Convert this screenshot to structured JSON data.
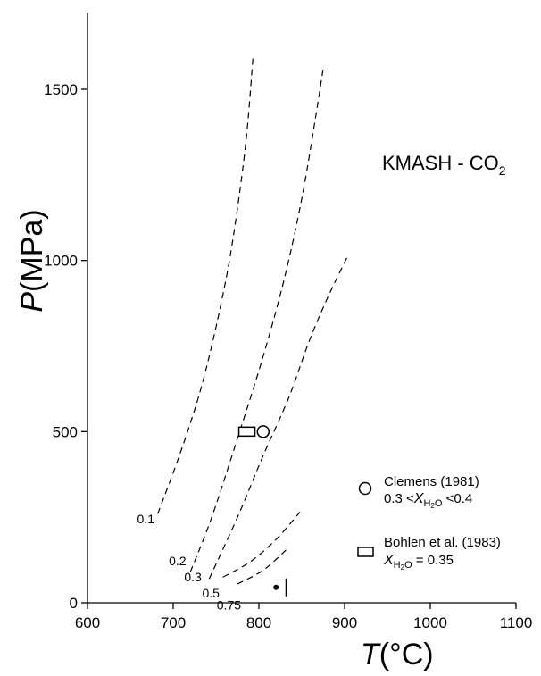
{
  "chart_data": {
    "type": "line",
    "title": "",
    "xlabel": {
      "symbol": "T",
      "unit": "(°C)"
    },
    "ylabel": {
      "symbol": "P",
      "unit": "(MPa)"
    },
    "xlim": [
      600,
      1100
    ],
    "ylim": [
      0,
      1700
    ],
    "xticks": [
      600,
      700,
      800,
      900,
      1000,
      1100
    ],
    "yticks": [
      0,
      500,
      1000,
      1500
    ],
    "system_label": {
      "main": "KMASH - CO",
      "sub": "2"
    },
    "series": [
      {
        "name": "0.1",
        "points": [
          [
            682,
            260
          ],
          [
            710,
            450
          ],
          [
            735,
            650
          ],
          [
            758,
            900
          ],
          [
            772,
            1100
          ],
          [
            785,
            1350
          ],
          [
            793,
            1590
          ]
        ]
      },
      {
        "name": "0.2",
        "points": [
          [
            720,
            90
          ],
          [
            745,
            250
          ],
          [
            775,
            480
          ],
          [
            805,
            720
          ],
          [
            830,
            950
          ],
          [
            850,
            1180
          ],
          [
            865,
            1400
          ],
          [
            875,
            1560
          ]
        ]
      },
      {
        "name": "0.3",
        "points": [
          [
            742,
            70
          ],
          [
            775,
            250
          ],
          [
            805,
            430
          ],
          [
            835,
            600
          ],
          [
            858,
            760
          ],
          [
            880,
            890
          ],
          [
            903,
            1010
          ]
        ]
      },
      {
        "name": "0.5",
        "points": [
          [
            758,
            75
          ],
          [
            790,
            120
          ],
          [
            820,
            185
          ],
          [
            848,
            265
          ]
        ]
      },
      {
        "name": "0.75",
        "points": [
          [
            775,
            55
          ],
          [
            805,
            95
          ],
          [
            832,
            155
          ]
        ]
      }
    ],
    "curve_labels": [
      {
        "text": "0.1",
        "x": 668,
        "y": 232
      },
      {
        "text": "0.2",
        "x": 705,
        "y": 110
      },
      {
        "text": "0.3",
        "x": 723,
        "y": 63
      },
      {
        "text": "0.5",
        "x": 744,
        "y": 16
      },
      {
        "text": "0.75",
        "x": 765,
        "y": -20
      }
    ],
    "markers": [
      {
        "kind": "circle",
        "x": 805,
        "y": 500
      },
      {
        "kind": "rectangle",
        "x": 786,
        "y": 500
      },
      {
        "kind": "dot",
        "x": 820,
        "y": 45
      },
      {
        "kind": "bar",
        "x": 832,
        "y": 45
      }
    ],
    "legend": {
      "position": "right",
      "entries": [
        {
          "marker": "circle",
          "line1": "Clemens (1981)",
          "line2_prefix": "0.3 <",
          "line2_var": "X",
          "line2_sub": "H",
          "line2_sub2": "2",
          "line2_sub3": "O",
          "line2_suffix": " <0.4"
        },
        {
          "marker": "rectangle",
          "line1": "Bohlen et al. (1983)",
          "line2_prefix": "",
          "line2_var": "X",
          "line2_sub": "H",
          "line2_sub2": "2",
          "line2_sub3": "O",
          "line2_suffix": " = 0.35"
        }
      ]
    }
  }
}
